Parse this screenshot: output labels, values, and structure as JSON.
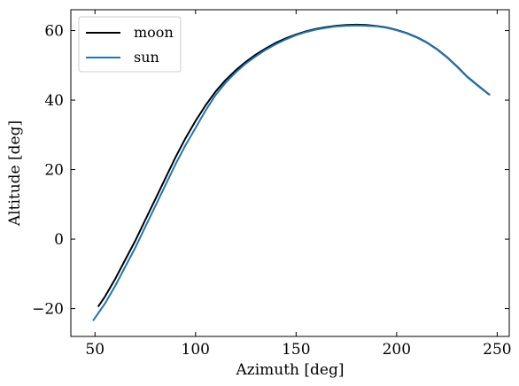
{
  "chart_data": {
    "type": "line",
    "title": "",
    "xlabel": "Azimuth [deg]",
    "ylabel": "Altitude [deg]",
    "xlim": [
      38,
      256
    ],
    "ylim": [
      -28,
      66
    ],
    "xticks": [
      50,
      100,
      150,
      200,
      250
    ],
    "yticks": [
      -20,
      0,
      20,
      40,
      60
    ],
    "xtick_labels": [
      "50",
      "100",
      "150",
      "200",
      "250"
    ],
    "ytick_labels": [
      "−20",
      "0",
      "20",
      "40",
      "60"
    ],
    "grid": false,
    "legend_position": "top-left",
    "series": [
      {
        "name": "moon",
        "color": "#000000",
        "points": [
          [
            51.5,
            -19.5
          ],
          [
            55,
            -16.5
          ],
          [
            60,
            -11.5
          ],
          [
            65,
            -6
          ],
          [
            70,
            -0.5
          ],
          [
            75,
            5.5
          ],
          [
            80,
            11.5
          ],
          [
            85,
            17.5
          ],
          [
            90,
            23.5
          ],
          [
            95,
            29
          ],
          [
            100,
            34
          ],
          [
            105,
            38.5
          ],
          [
            110,
            42.5
          ],
          [
            115,
            45.8
          ],
          [
            120,
            48.6
          ],
          [
            125,
            51
          ],
          [
            130,
            53.1
          ],
          [
            135,
            54.9
          ],
          [
            140,
            56.5
          ],
          [
            145,
            57.8
          ],
          [
            150,
            58.9
          ],
          [
            155,
            59.8
          ],
          [
            160,
            60.5
          ],
          [
            165,
            61
          ],
          [
            170,
            61.4
          ],
          [
            175,
            61.6
          ],
          [
            180,
            61.7
          ],
          [
            185,
            61.6
          ],
          [
            190,
            61.3
          ],
          [
            195,
            60.9
          ],
          [
            200,
            60.2
          ],
          [
            205,
            59.3
          ],
          [
            210,
            58.1
          ],
          [
            215,
            56.6
          ],
          [
            220,
            54.7
          ],
          [
            225,
            52.4
          ],
          [
            230,
            49.7
          ],
          [
            235,
            46.8
          ],
          [
            240,
            44.4
          ],
          [
            243,
            43
          ],
          [
            246,
            41.6
          ]
        ]
      },
      {
        "name": "sun",
        "color": "#1f77b4",
        "points": [
          [
            49,
            -23.5
          ],
          [
            52,
            -21
          ],
          [
            55,
            -18.5
          ],
          [
            60,
            -13.5
          ],
          [
            65,
            -8
          ],
          [
            70,
            -2.5
          ],
          [
            75,
            3.5
          ],
          [
            80,
            9.5
          ],
          [
            85,
            15.5
          ],
          [
            90,
            21.5
          ],
          [
            95,
            27
          ],
          [
            100,
            32
          ],
          [
            105,
            37
          ],
          [
            110,
            41.5
          ],
          [
            115,
            45
          ],
          [
            120,
            48
          ],
          [
            125,
            50.5
          ],
          [
            130,
            52.6
          ],
          [
            135,
            54.5
          ],
          [
            140,
            56.1
          ],
          [
            145,
            57.5
          ],
          [
            150,
            58.7
          ],
          [
            155,
            59.6
          ],
          [
            160,
            60.3
          ],
          [
            165,
            60.8
          ],
          [
            170,
            61.2
          ],
          [
            175,
            61.4
          ],
          [
            180,
            61.5
          ],
          [
            185,
            61.4
          ],
          [
            190,
            61.2
          ],
          [
            195,
            60.8
          ],
          [
            200,
            60.1
          ],
          [
            205,
            59.2
          ],
          [
            210,
            58
          ],
          [
            215,
            56.5
          ],
          [
            220,
            54.6
          ],
          [
            225,
            52.3
          ],
          [
            230,
            49.6
          ],
          [
            235,
            46.7
          ],
          [
            240,
            44.3
          ],
          [
            243,
            42.9
          ],
          [
            246.5,
            41.5
          ]
        ]
      }
    ]
  }
}
